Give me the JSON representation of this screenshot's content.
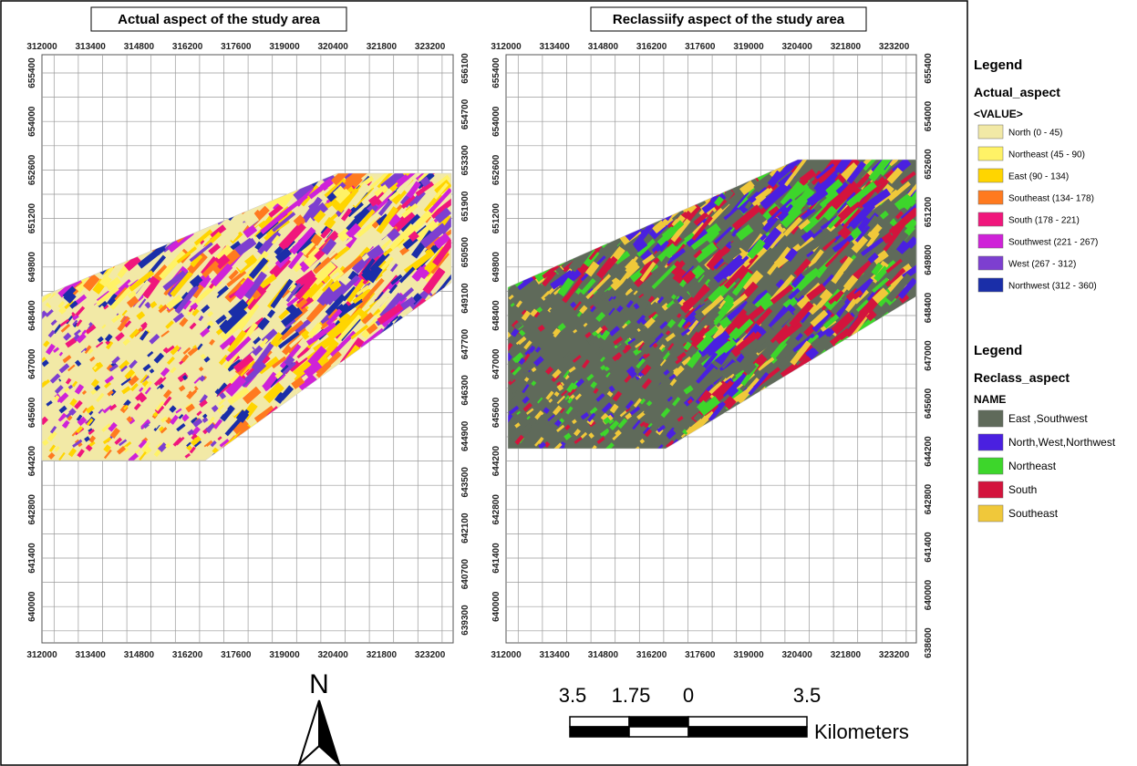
{
  "panels": [
    {
      "title": "Actual aspect of the study area",
      "x_labels": [
        312000,
        313400,
        314800,
        316200,
        317600,
        319000,
        320400,
        321800,
        323200
      ],
      "y_labels_left": [
        655400,
        654000,
        652600,
        651200,
        649800,
        648400,
        647000,
        645600,
        644200,
        642800,
        641400,
        640000
      ],
      "y_labels_right": [
        656100,
        654700,
        653300,
        651900,
        650500,
        649100,
        647700,
        646300,
        644900,
        643500,
        642100,
        640700,
        639300
      ]
    },
    {
      "title": "Reclassiify aspect of the study area",
      "x_labels": [
        312000,
        313400,
        314800,
        316200,
        317600,
        319000,
        320400,
        321800,
        323200
      ],
      "y_labels_left": [
        655400,
        654000,
        652600,
        651200,
        649800,
        648400,
        647000,
        645600,
        644200,
        642800,
        641400,
        640000
      ],
      "y_labels_right": [
        655400,
        654000,
        652600,
        651200,
        649800,
        648400,
        647000,
        645600,
        644200,
        642800,
        641400,
        640000,
        638600
      ]
    }
  ],
  "legends": [
    {
      "heading": "Legend",
      "layer": "Actual_aspect",
      "field": "<VALUE>",
      "items": [
        {
          "label": "North (0 - 45)",
          "color": "#f2e9a6"
        },
        {
          "label": "Northeast (45 - 90)",
          "color": "#fff266"
        },
        {
          "label": "East (90 - 134)",
          "color": "#ffd500"
        },
        {
          "label": "Southeast (134- 178)",
          "color": "#ff7a1f"
        },
        {
          "label": "South (178 - 221)",
          "color": "#f0167c"
        },
        {
          "label": "Southwest (221 - 267)",
          "color": "#cf22d8"
        },
        {
          "label": "West (267 - 312)",
          "color": "#7d3fd0"
        },
        {
          "label": "Northwest (312 - 360)",
          "color": "#1a2ea8"
        }
      ]
    },
    {
      "heading": "Legend",
      "layer": "Reclass_aspect",
      "field": "NAME",
      "items": [
        {
          "label": "East ,Southwest",
          "color": "#5f6a5a"
        },
        {
          "label": "North,West,Northwest",
          "color": "#4a20e0"
        },
        {
          "label": "Northeast",
          "color": "#3dd62b"
        },
        {
          "label": "South",
          "color": "#d3143d"
        },
        {
          "label": "Southeast",
          "color": "#f0c83a"
        }
      ]
    }
  ],
  "north_arrow": "N",
  "scale_bar": {
    "labels": [
      "3.5",
      "1.75",
      "0",
      "3.5"
    ],
    "unit": "Kilometers"
  }
}
